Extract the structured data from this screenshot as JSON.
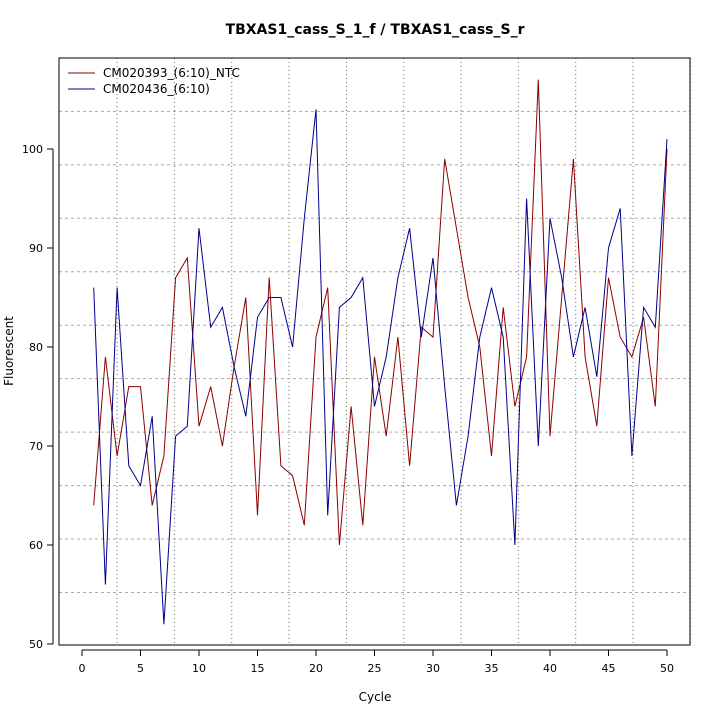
{
  "chart_data": {
    "type": "line",
    "title": "TBXAS1_cass_S_1_f / TBXAS1_cass_S_r",
    "xlabel": "Cycle",
    "ylabel": "Fluorescent",
    "xlim": [
      -1,
      53
    ],
    "ylim": [
      50,
      108
    ],
    "xticks": [
      0,
      5,
      10,
      15,
      20,
      25,
      30,
      35,
      40,
      45,
      50
    ],
    "yticks": [
      50,
      60,
      70,
      80,
      90,
      100
    ],
    "grid": true,
    "legend_position": "top-left",
    "series": [
      {
        "name": "CM020393_(6:10)_NTC",
        "color": "#8b0000",
        "x": [
          1,
          2,
          3,
          4,
          5,
          6,
          7,
          8,
          9,
          10,
          11,
          12,
          13,
          14,
          15,
          16,
          17,
          18,
          19,
          20,
          21,
          22,
          23,
          24,
          25,
          26,
          27,
          28,
          29,
          30,
          31,
          32,
          33,
          34,
          35,
          36,
          37,
          38,
          39,
          40,
          41,
          42,
          43,
          44,
          45,
          46,
          47,
          48,
          49,
          50
        ],
        "values": [
          64,
          79,
          69,
          76,
          76,
          64,
          69,
          87,
          89,
          72,
          76,
          70,
          78,
          85,
          63,
          87,
          68,
          67,
          62,
          81,
          86,
          60,
          74,
          62,
          79,
          71,
          81,
          68,
          82,
          81,
          99,
          92,
          85,
          80,
          69,
          84,
          74,
          79,
          107,
          71,
          85,
          99,
          79,
          72,
          87,
          81,
          79,
          83,
          74,
          100
        ]
      },
      {
        "name": "CM020436_(6:10)",
        "color": "#00008b",
        "x": [
          1,
          2,
          3,
          4,
          5,
          6,
          7,
          8,
          9,
          10,
          11,
          12,
          13,
          14,
          15,
          16,
          17,
          18,
          19,
          20,
          21,
          22,
          23,
          24,
          25,
          26,
          27,
          28,
          29,
          30,
          31,
          32,
          33,
          34,
          35,
          36,
          37,
          38,
          39,
          40,
          41,
          42,
          43,
          44,
          45,
          46,
          47,
          48,
          49,
          50
        ],
        "values": [
          86,
          56,
          86,
          68,
          66,
          73,
          52,
          71,
          72,
          92,
          82,
          84,
          78,
          73,
          83,
          85,
          85,
          80,
          93,
          104,
          63,
          84,
          85,
          87,
          74,
          79,
          87,
          92,
          81,
          89,
          76,
          64,
          71,
          81,
          86,
          81,
          60,
          95,
          70,
          93,
          87,
          79,
          84,
          77,
          90,
          94,
          69,
          84,
          82,
          101
        ]
      }
    ]
  }
}
